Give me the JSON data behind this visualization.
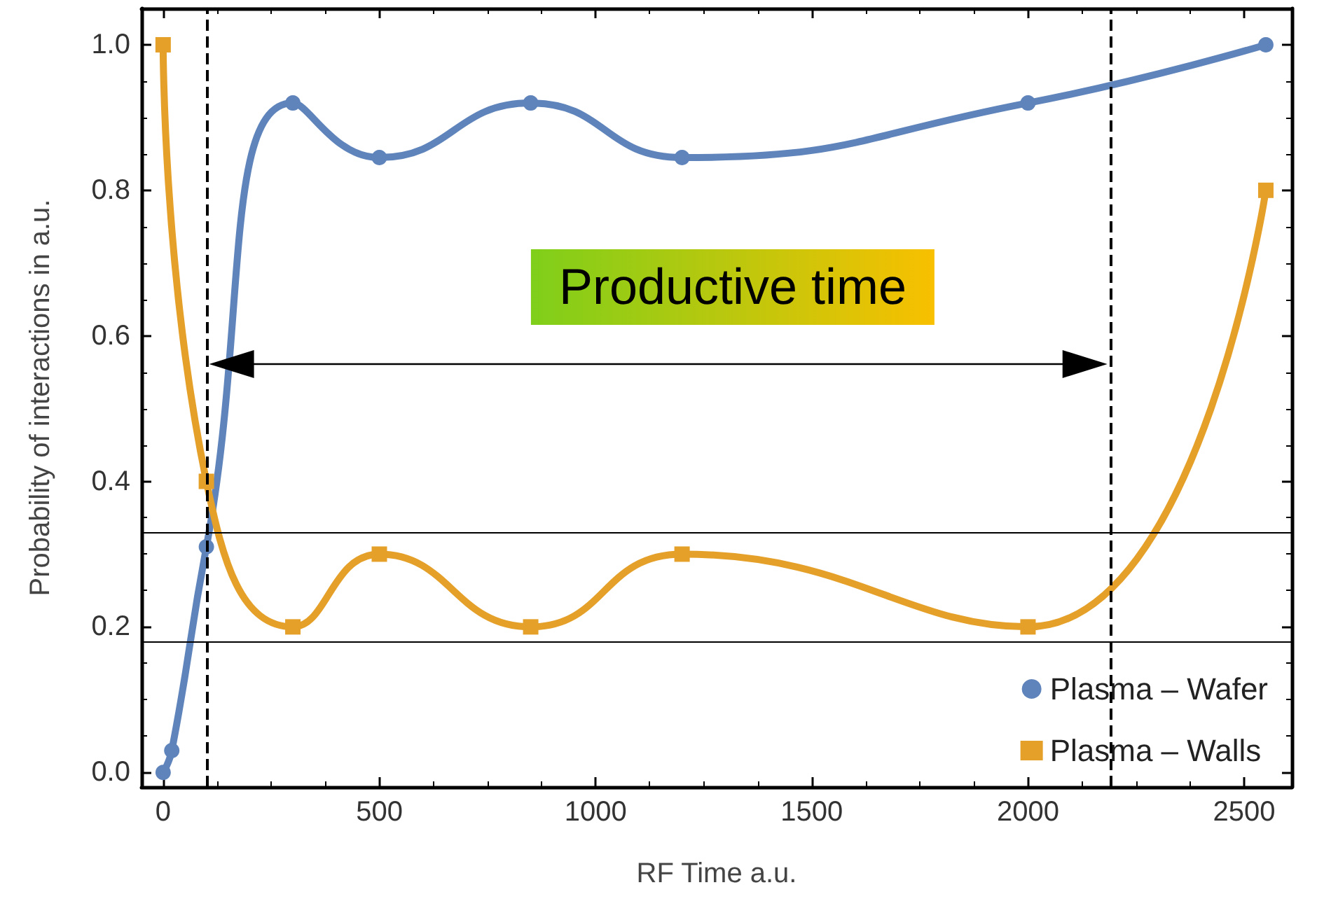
{
  "chart_data": {
    "type": "line",
    "xlabel": "RF Time a.u.",
    "ylabel": "Probability of interactions in a.u.",
    "series": [
      {
        "name": "Plasma – Wafer",
        "color": "#5f84bb",
        "marker": "circle",
        "x": [
          0,
          20,
          100,
          300,
          500,
          850,
          1200,
          2000,
          2550
        ],
        "values": [
          0,
          0.03,
          0.31,
          0.92,
          0.845,
          0.92,
          0.845,
          0.92,
          1.0
        ]
      },
      {
        "name": "Plasma – Walls",
        "color": "#e5a02a",
        "marker": "square",
        "x": [
          0,
          100,
          300,
          500,
          850,
          1200,
          2000,
          2550
        ],
        "values": [
          1.0,
          0.4,
          0.2,
          0.3,
          0.2,
          0.3,
          0.2,
          0.8
        ]
      }
    ],
    "xlim": [
      -50,
      2610
    ],
    "xticks": [
      0,
      500,
      1000,
      1500,
      2000,
      2500
    ],
    "ylim": [
      -0.02,
      1.05
    ],
    "yticks": [
      {
        "value": 0,
        "label": "0.0"
      },
      {
        "value": 0.2,
        "label": "0.2"
      },
      {
        "value": 0.4,
        "label": "0.4"
      },
      {
        "value": 0.6,
        "label": "0.6"
      },
      {
        "value": 0.8,
        "label": "0.8"
      },
      {
        "value": 1.0,
        "label": "1.0"
      }
    ],
    "ref_lines": [
      {
        "axis": "x",
        "value": 100,
        "line_style": "dashed",
        "color": "#000000"
      },
      {
        "axis": "x",
        "value": 2190,
        "line_style": "dashed",
        "color": "#000000"
      },
      {
        "axis": "y",
        "value": 0.33,
        "line_style": "solid",
        "color": "#000000"
      },
      {
        "axis": "y",
        "value": 0.18,
        "line_style": "solid",
        "color": "#000000"
      }
    ],
    "annotations": [
      "Productive time"
    ],
    "grid": false,
    "legend": "bottom right",
    "line_style": "solid"
  }
}
